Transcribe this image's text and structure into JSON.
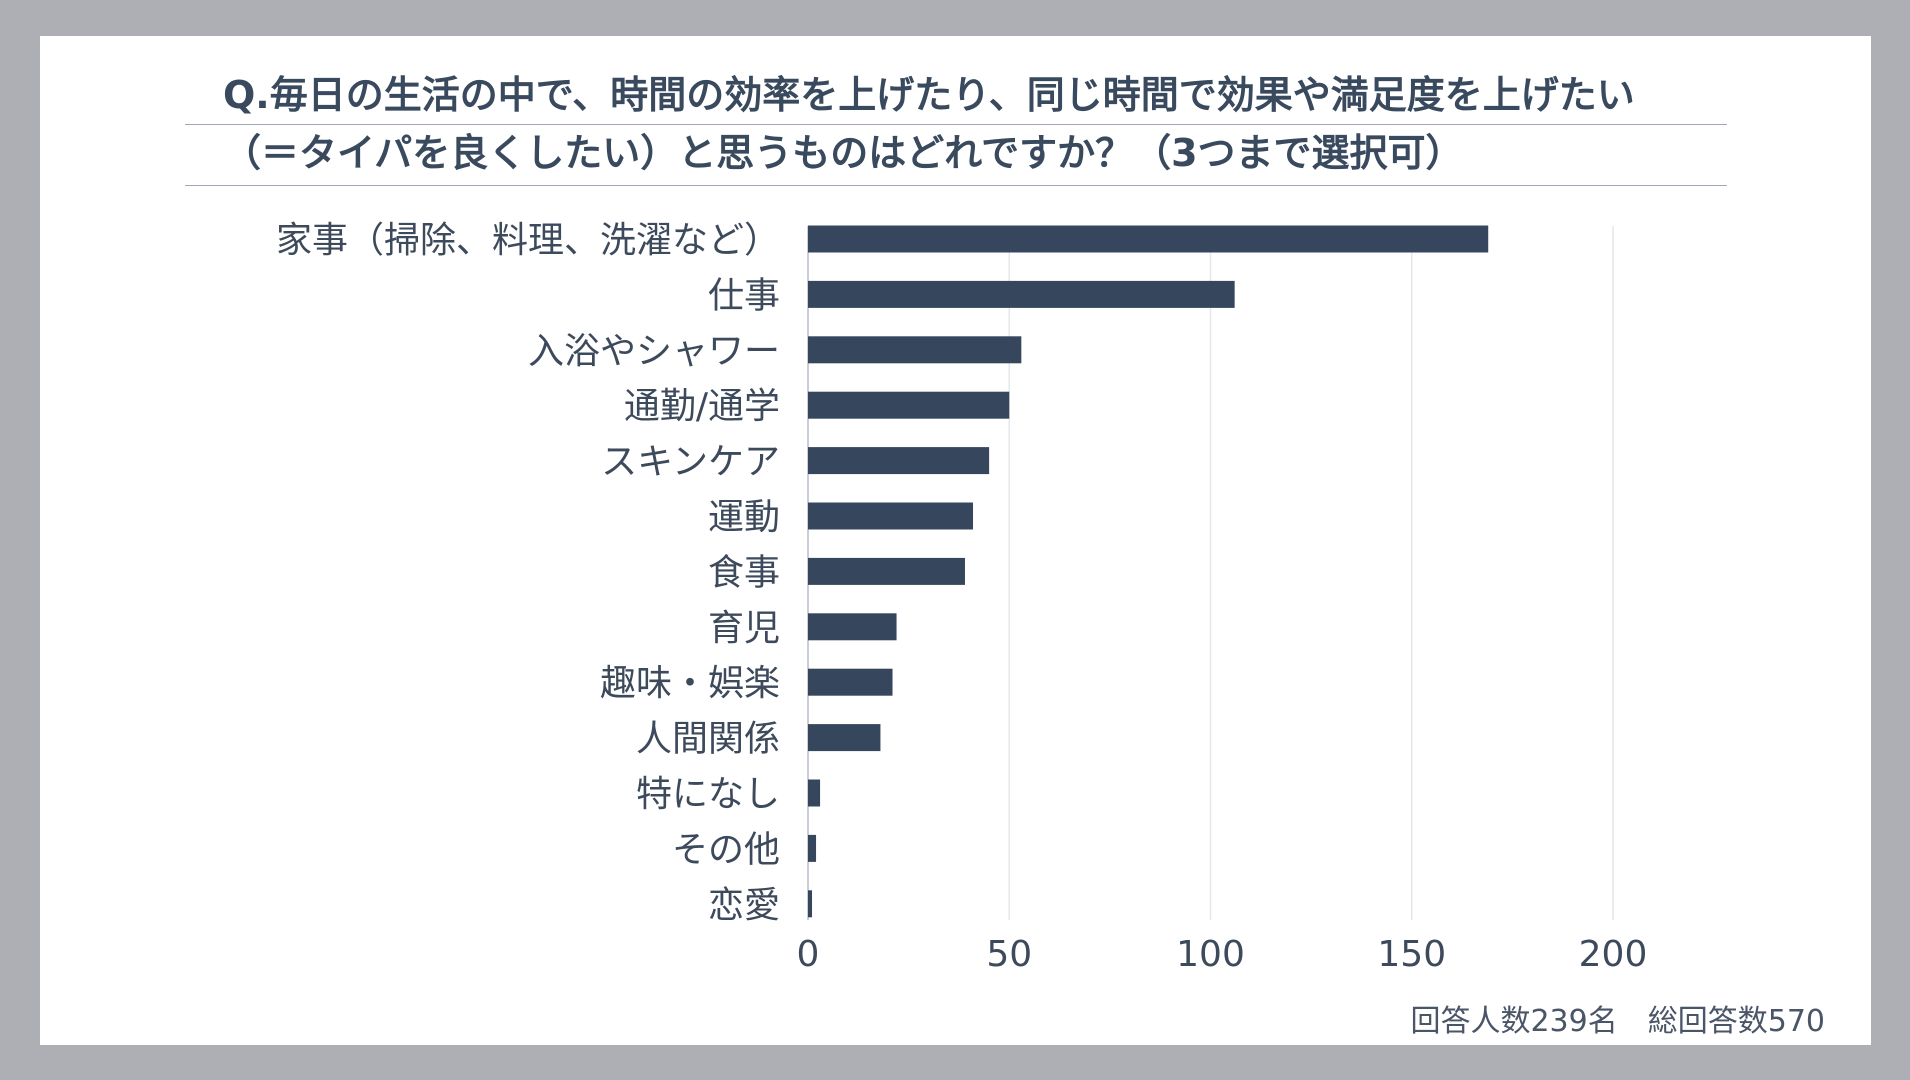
{
  "title": {
    "line1": "Q.毎日の生活の中で、時間の効率を上げたり、同じ時間で効果や満足度を上げたい",
    "line2": "（＝タイパを良くしたい）と思うものはどれですか？（3つまで選択可）"
  },
  "footnote": "回答人数239名　総回答数570",
  "colors": {
    "bar": "#36475d",
    "grid": "#e4e7ec",
    "axis": "#b7bec8",
    "label": "#3d4a5c"
  },
  "chart_data": {
    "type": "bar",
    "orientation": "horizontal",
    "categories": [
      "家事（掃除、料理、洗濯など）",
      "仕事",
      "入浴やシャワー",
      "通勤/通学",
      "スキンケア",
      "運動",
      "食事",
      "育児",
      "趣味・娯楽",
      "人間関係",
      "特になし",
      "その他",
      "恋愛"
    ],
    "values": [
      169,
      106,
      53,
      50,
      45,
      41,
      39,
      22,
      21,
      18,
      3,
      2,
      1
    ],
    "xlim": [
      0,
      240
    ],
    "xticks": [
      0,
      50,
      100,
      150,
      200
    ],
    "grid": true,
    "legend": "none"
  }
}
